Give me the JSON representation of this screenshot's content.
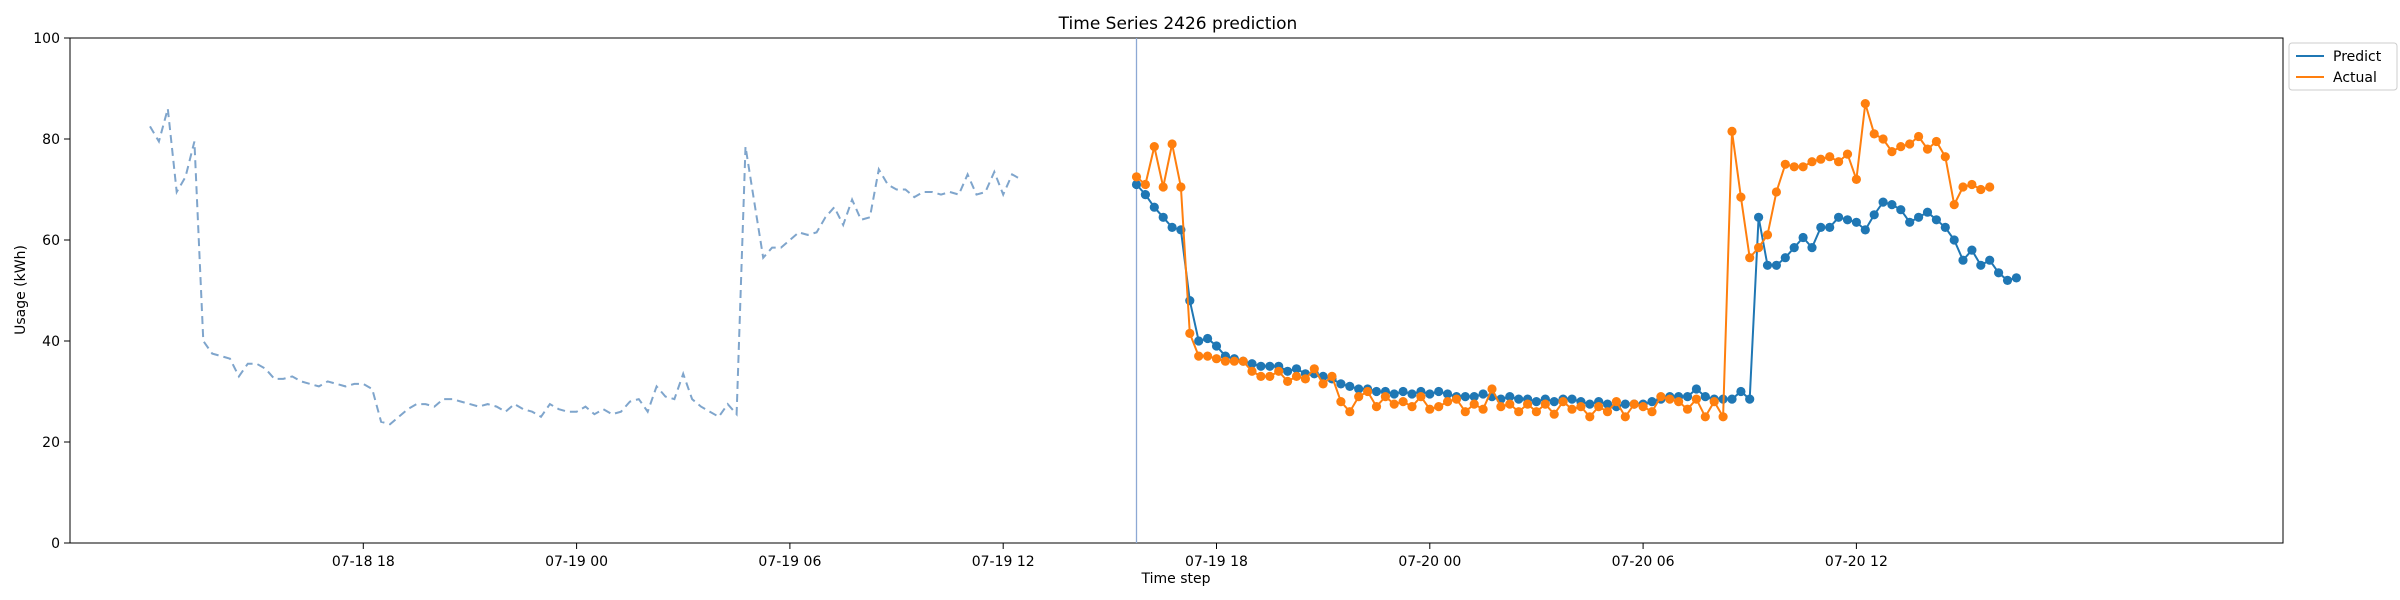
{
  "chart_data": {
    "type": "line",
    "title": "Time Series 2426 prediction",
    "xlabel": "Time step",
    "ylabel": "Usage (kWh)",
    "ylim": [
      0,
      100
    ],
    "xlim": [
      "07-18 09:45",
      "07-21 00:00"
    ],
    "x_ticks": [
      {
        "t": "07-18 18:00",
        "label": "07-18 18"
      },
      {
        "t": "07-19 00:00",
        "label": "07-19 00"
      },
      {
        "t": "07-19 06:00",
        "label": "07-19 06"
      },
      {
        "t": "07-19 12:00",
        "label": "07-19 12"
      },
      {
        "t": "07-19 18:00",
        "label": "07-19 18"
      },
      {
        "t": "07-20 00:00",
        "label": "07-20 00"
      },
      {
        "t": "07-20 06:00",
        "label": "07-20 06"
      },
      {
        "t": "07-20 12:00",
        "label": "07-20 12"
      }
    ],
    "y_ticks": [
      0,
      20,
      40,
      60,
      80,
      100
    ],
    "forecast_start": "07-19 15:45",
    "legend_position": "top-right",
    "grid": false,
    "colors": {
      "history": "#7fa5cc",
      "predict": "#1f77b4",
      "actual": "#ff7f0e",
      "split_line": "#8da9d4"
    },
    "history": {
      "start": "07-18 12:00",
      "step_minutes": 15,
      "values": [
        82.5,
        79.5,
        86,
        69.5,
        72.5,
        79.5,
        40,
        37.5,
        37,
        36.5,
        33,
        35.5,
        35.5,
        34.5,
        32.5,
        32.5,
        33,
        32,
        31.5,
        31,
        32,
        31.5,
        31,
        31.5,
        31.5,
        30.5,
        24,
        23.5,
        25,
        26.5,
        27.5,
        27.5,
        27,
        28.5,
        28.5,
        28,
        27.5,
        27,
        27.5,
        27,
        26,
        27.5,
        26.5,
        26,
        25,
        27.5,
        26.5,
        26,
        26,
        27,
        25.5,
        26.5,
        25.5,
        26,
        28,
        28.5,
        26,
        31,
        29,
        28.5,
        33.5,
        28.5,
        27,
        26,
        25,
        27.5,
        25.5,
        78.5,
        67.5,
        56.5,
        58.5,
        58.5,
        60,
        61.5,
        61,
        61.5,
        64.5,
        66.5,
        63,
        68,
        64,
        64.5,
        74,
        71,
        70,
        70,
        68.5,
        69.5,
        69.5,
        69,
        69.5,
        69,
        73,
        69,
        69.5,
        73.5,
        69,
        73,
        72
      ]
    },
    "series": [
      {
        "name": "Predict",
        "start": "07-19 15:45",
        "step_minutes": 15,
        "values": [
          71,
          69,
          66.5,
          64.5,
          62.5,
          62,
          48,
          40,
          40.5,
          39,
          37,
          36.5,
          36,
          35.5,
          35,
          35,
          35,
          34,
          34.5,
          33.5,
          33.5,
          33,
          32.5,
          31.5,
          31,
          30.5,
          30.5,
          30,
          30,
          29.5,
          30,
          29.5,
          30,
          29.5,
          30,
          29.5,
          29,
          29,
          29,
          29.5,
          29,
          28.5,
          29,
          28.5,
          28.5,
          28,
          28.5,
          28,
          28.5,
          28.5,
          28,
          27.5,
          28,
          27.5,
          27,
          27.5,
          27.5,
          27.5,
          28,
          28.5,
          29,
          29,
          29,
          30.5,
          29,
          28.5,
          28.5,
          28.5,
          30,
          28.5,
          64.5,
          55,
          55,
          56.5,
          58.5,
          60.5,
          58.5,
          62.5,
          62.5,
          64.5,
          64,
          63.5,
          62,
          65,
          67.5,
          67,
          66,
          63.5,
          64.5,
          65.5,
          64,
          62.5,
          60,
          56,
          58,
          55,
          56,
          53.5,
          52,
          52.5
        ]
      },
      {
        "name": "Actual",
        "start": "07-19 15:45",
        "step_minutes": 15,
        "values": [
          72.5,
          71,
          78.5,
          70.5,
          79,
          70.5,
          41.5,
          37,
          37,
          36.5,
          36,
          36,
          36,
          34,
          33,
          33,
          34,
          32,
          33,
          32.5,
          34.5,
          31.5,
          33,
          28,
          26,
          29,
          30,
          27,
          29,
          27.5,
          28,
          27,
          29,
          26.5,
          27,
          28,
          28.5,
          26,
          27.5,
          26.5,
          30.5,
          27,
          27.5,
          26,
          27.5,
          26,
          27.5,
          25.5,
          28,
          26.5,
          27,
          25,
          27,
          26,
          28,
          25,
          27.5,
          27,
          26,
          29,
          28.5,
          28,
          26.5,
          28.5,
          25,
          28,
          25,
          81.5,
          68.5,
          56.5,
          58.5,
          61,
          69.5,
          75,
          74.5,
          74.5,
          75.5,
          76,
          76.5,
          75.5,
          77,
          72,
          87,
          81,
          80,
          77.5,
          78.5,
          79,
          80.5,
          78,
          79.5,
          76.5,
          67,
          70.5,
          71,
          70,
          70.5
        ]
      }
    ]
  }
}
